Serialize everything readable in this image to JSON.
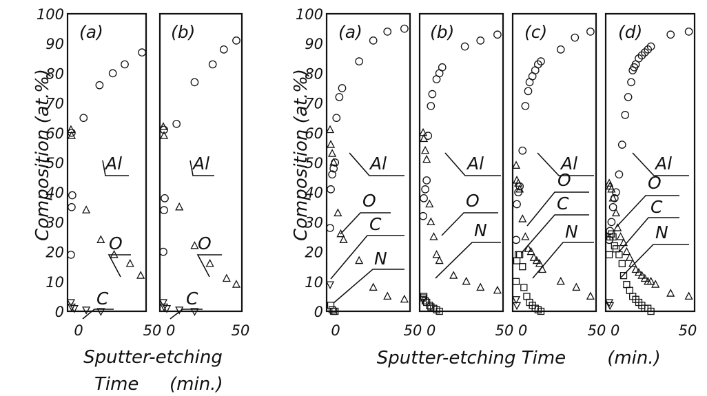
{
  "figure": {
    "left_ylabel": "Composition (at.%)",
    "right_ylabel": "Composition (at.%)",
    "left_xlabel_line1": "Sputter-etching",
    "left_xlabel_line2": "Time",
    "left_xlabel_unit": "(min.)",
    "right_xlabel": "Sputter-etching Time",
    "right_xlabel_unit": "(min.)",
    "y_ticks": [
      "0",
      "10",
      "20",
      "30",
      "40",
      "50",
      "60",
      "70",
      "80",
      "90",
      "100"
    ],
    "x_tick_first": "0",
    "x_tick_last": "50",
    "x_tick_shared": "50 0"
  },
  "chart_data": [
    {
      "type": "scatter",
      "panel": "(a)",
      "group": "left",
      "xlim": [
        0,
        55
      ],
      "ylim": [
        0,
        100
      ],
      "grid": false,
      "labels": [
        {
          "text": "Al"
        },
        {
          "text": "O"
        },
        {
          "text": "C"
        }
      ],
      "series": [
        {
          "marker": "circle",
          "points": [
            [
              0.5,
              19
            ],
            [
              1,
              35
            ],
            [
              1.5,
              39
            ],
            [
              1,
              60
            ],
            [
              10,
              65
            ],
            [
              22,
              76
            ],
            [
              32,
              80
            ],
            [
              41,
              83
            ],
            [
              54,
              87
            ]
          ]
        },
        {
          "marker": "triangle-up",
          "points": [
            [
              0.5,
              61
            ],
            [
              1,
              59
            ],
            [
              12,
              34
            ],
            [
              23,
              24
            ],
            [
              33,
              19
            ],
            [
              45,
              16
            ],
            [
              53,
              12
            ]
          ]
        },
        {
          "marker": "triangle-down",
          "points": [
            [
              0.5,
              3
            ],
            [
              1,
              1.5
            ],
            [
              3,
              1
            ],
            [
              12,
              0.5
            ],
            [
              23,
              0
            ]
          ]
        }
      ]
    },
    {
      "type": "scatter",
      "panel": "(b)",
      "group": "left",
      "xlim": [
        0,
        55
      ],
      "ylim": [
        0,
        100
      ],
      "grid": false,
      "labels": [
        {
          "text": "Al"
        },
        {
          "text": "O"
        },
        {
          "text": "C"
        }
      ],
      "series": [
        {
          "marker": "circle",
          "points": [
            [
              0.5,
              20
            ],
            [
              1,
              34
            ],
            [
              1.5,
              38
            ],
            [
              1,
              61
            ],
            [
              10,
              63
            ],
            [
              23,
              77
            ],
            [
              36,
              83
            ],
            [
              44,
              88
            ],
            [
              53,
              91
            ]
          ]
        },
        {
          "marker": "triangle-up",
          "points": [
            [
              0.5,
              62
            ],
            [
              1,
              59
            ],
            [
              12,
              35
            ],
            [
              23,
              22
            ],
            [
              34,
              16
            ],
            [
              46,
              11
            ],
            [
              53,
              9
            ]
          ]
        },
        {
          "marker": "triangle-down",
          "points": [
            [
              0.5,
              3
            ],
            [
              1,
              1.5
            ],
            [
              3,
              1
            ],
            [
              12,
              0.5
            ],
            [
              23,
              0
            ]
          ]
        }
      ]
    },
    {
      "type": "scatter",
      "panel": "(a)",
      "group": "right",
      "xlim": [
        0,
        55
      ],
      "ylim": [
        0,
        100
      ],
      "grid": false,
      "labels": [
        {
          "text": "Al"
        },
        {
          "text": "O"
        },
        {
          "text": "C"
        },
        {
          "text": "N"
        }
      ],
      "series": [
        {
          "marker": "circle",
          "points": [
            [
              0.5,
              28
            ],
            [
              1,
              41
            ],
            [
              2,
              46
            ],
            [
              3,
              48
            ],
            [
              4,
              50
            ],
            [
              5,
              65
            ],
            [
              7,
              72
            ],
            [
              9,
              75
            ],
            [
              21,
              84
            ],
            [
              31,
              91
            ],
            [
              41,
              94
            ],
            [
              53,
              95
            ]
          ]
        },
        {
          "marker": "triangle-up",
          "points": [
            [
              0.5,
              61
            ],
            [
              1,
              56
            ],
            [
              2,
              53
            ],
            [
              3,
              50
            ],
            [
              6,
              33
            ],
            [
              8,
              26
            ],
            [
              10,
              24
            ],
            [
              21,
              17
            ],
            [
              31,
              8
            ],
            [
              41,
              5
            ],
            [
              53,
              4
            ]
          ]
        },
        {
          "marker": "triangle-down",
          "points": [
            [
              0.5,
              9
            ]
          ]
        },
        {
          "marker": "square",
          "points": [
            [
              1,
              2
            ],
            [
              2,
              0.5
            ],
            [
              3,
              0
            ],
            [
              4,
              0
            ]
          ]
        }
      ]
    },
    {
      "type": "scatter",
      "panel": "(b)",
      "group": "right",
      "xlim": [
        0,
        55
      ],
      "ylim": [
        0,
        100
      ],
      "grid": false,
      "labels": [
        {
          "text": "Al"
        },
        {
          "text": "O"
        },
        {
          "text": "C"
        },
        {
          "text": "N"
        }
      ],
      "series": [
        {
          "marker": "circle",
          "points": [
            [
              0.5,
              32
            ],
            [
              1,
              38
            ],
            [
              2,
              41
            ],
            [
              3,
              44
            ],
            [
              4,
              59
            ],
            [
              6,
              69
            ],
            [
              7,
              73
            ],
            [
              10,
              78
            ],
            [
              12,
              80
            ],
            [
              14,
              82
            ],
            [
              30,
              89
            ],
            [
              41,
              91
            ],
            [
              53,
              93
            ]
          ]
        },
        {
          "marker": "triangle-up",
          "points": [
            [
              0.5,
              60
            ],
            [
              1,
              58
            ],
            [
              2,
              54
            ],
            [
              3,
              51
            ],
            [
              5,
              36
            ],
            [
              6,
              30
            ],
            [
              8,
              25
            ],
            [
              10,
              19
            ],
            [
              12,
              17
            ],
            [
              22,
              12
            ],
            [
              31,
              10
            ],
            [
              41,
              8
            ],
            [
              53,
              7
            ]
          ]
        },
        {
          "marker": "triangle-down",
          "points": [
            [
              0.5,
              4
            ]
          ]
        },
        {
          "marker": "square",
          "points": [
            [
              0.5,
              4.5
            ],
            [
              1,
              5
            ],
            [
              2,
              3.5
            ],
            [
              3,
              3
            ],
            [
              5,
              2
            ],
            [
              6,
              1.5
            ],
            [
              8,
              1
            ],
            [
              10,
              0.5
            ],
            [
              12,
              0
            ]
          ]
        }
      ]
    },
    {
      "type": "scatter",
      "panel": "(c)",
      "group": "right",
      "xlim": [
        0,
        55
      ],
      "ylim": [
        0,
        100
      ],
      "grid": false,
      "labels": [
        {
          "text": "Al"
        },
        {
          "text": "O"
        },
        {
          "text": "C"
        },
        {
          "text": "N"
        }
      ],
      "series": [
        {
          "marker": "circle",
          "points": [
            [
              0.5,
              24
            ],
            [
              1,
              36
            ],
            [
              2,
              40
            ],
            [
              3,
              42
            ],
            [
              5,
              54
            ],
            [
              7,
              69
            ],
            [
              9,
              74
            ],
            [
              10,
              77
            ],
            [
              12,
              79
            ],
            [
              14,
              81
            ],
            [
              16,
              83
            ],
            [
              18,
              84
            ],
            [
              32,
              88
            ],
            [
              42,
              92
            ],
            [
              53,
              94
            ]
          ]
        },
        {
          "marker": "triangle-up",
          "points": [
            [
              0.5,
              49
            ],
            [
              1,
              44
            ],
            [
              2,
              43
            ],
            [
              3,
              41
            ],
            [
              5,
              31
            ],
            [
              7,
              25
            ],
            [
              9,
              21
            ],
            [
              11,
              20
            ],
            [
              13,
              18
            ],
            [
              15,
              17
            ],
            [
              17,
              16
            ],
            [
              19,
              14
            ],
            [
              32,
              10
            ],
            [
              43,
              8
            ],
            [
              53,
              5
            ]
          ]
        },
        {
          "marker": "triangle-down",
          "points": [
            [
              0.5,
              4
            ],
            [
              1,
              2
            ]
          ]
        },
        {
          "marker": "square",
          "points": [
            [
              0.5,
              10
            ],
            [
              1,
              17
            ],
            [
              2,
              19
            ],
            [
              3,
              19
            ],
            [
              5,
              15
            ],
            [
              6,
              8
            ],
            [
              8,
              5
            ],
            [
              10,
              3
            ],
            [
              12,
              2
            ],
            [
              14,
              1
            ],
            [
              16,
              0.5
            ],
            [
              18,
              0
            ]
          ]
        }
      ]
    },
    {
      "type": "scatter",
      "panel": "(d)",
      "group": "right",
      "xlim": [
        0,
        55
      ],
      "ylim": [
        0,
        100
      ],
      "grid": false,
      "labels": [
        {
          "text": "Al"
        },
        {
          "text": "O"
        },
        {
          "text": "C"
        },
        {
          "text": "N"
        }
      ],
      "series": [
        {
          "marker": "circle",
          "points": [
            [
              0.5,
              24
            ],
            [
              1,
              27
            ],
            [
              2,
              30
            ],
            [
              3,
              35
            ],
            [
              4,
              38
            ],
            [
              5,
              40
            ],
            [
              7,
              46
            ],
            [
              9,
              56
            ],
            [
              11,
              66
            ],
            [
              13,
              72
            ],
            [
              15,
              77
            ],
            [
              16,
              81
            ],
            [
              17,
              82
            ],
            [
              18,
              83
            ],
            [
              20,
              85
            ],
            [
              22,
              86
            ],
            [
              24,
              87
            ],
            [
              26,
              88
            ],
            [
              28,
              89
            ],
            [
              41,
              93
            ],
            [
              53,
              94
            ]
          ]
        },
        {
          "marker": "triangle-up",
          "points": [
            [
              0.5,
              43
            ],
            [
              1,
              42
            ],
            [
              2,
              41
            ],
            [
              3,
              38
            ],
            [
              5,
              33
            ],
            [
              6,
              28
            ],
            [
              8,
              25
            ],
            [
              10,
              23
            ],
            [
              12,
              20
            ],
            [
              14,
              18
            ],
            [
              16,
              16
            ],
            [
              18,
              14
            ],
            [
              20,
              13
            ],
            [
              22,
              12
            ],
            [
              24,
              11
            ],
            [
              26,
              10
            ],
            [
              28,
              10
            ],
            [
              31,
              9
            ],
            [
              41,
              6
            ],
            [
              53,
              5
            ]
          ]
        },
        {
          "marker": "triangle-down",
          "points": [
            [
              0.5,
              3
            ],
            [
              1,
              2
            ]
          ]
        },
        {
          "marker": "square",
          "points": [
            [
              0.5,
              19
            ],
            [
              1,
              25
            ],
            [
              2,
              26
            ],
            [
              3,
              25
            ],
            [
              4,
              22
            ],
            [
              5,
              21
            ],
            [
              7,
              19
            ],
            [
              9,
              16
            ],
            [
              10,
              12
            ],
            [
              12,
              9
            ],
            [
              14,
              7
            ],
            [
              16,
              5
            ],
            [
              18,
              4
            ],
            [
              20,
              3
            ],
            [
              22,
              2
            ],
            [
              24,
              1
            ],
            [
              26,
              1
            ],
            [
              28,
              0
            ]
          ]
        }
      ]
    }
  ]
}
